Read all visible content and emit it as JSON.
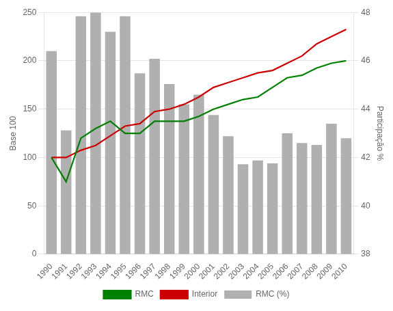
{
  "chart_data": {
    "type": "bar",
    "categories": [
      "1990",
      "1991",
      "1992",
      "1993",
      "1994",
      "1995",
      "1996",
      "1997",
      "1998",
      "1999",
      "2000",
      "2001",
      "2002",
      "2003",
      "2004",
      "2005",
      "2006",
      "2007",
      "2008",
      "2009",
      "2010"
    ],
    "series": [
      {
        "name": "RMC (%)",
        "type": "bar",
        "color": "#b0b0b0",
        "axis": "y",
        "values": [
          210,
          128,
          246,
          250,
          230,
          246,
          187,
          202,
          176,
          155,
          165,
          144,
          122,
          93,
          97,
          94,
          125,
          115,
          113,
          135,
          120
        ]
      },
      {
        "name": "RMC",
        "type": "line",
        "color": "#008000",
        "axis": "y2",
        "values": [
          42.0,
          41.0,
          42.8,
          43.2,
          43.5,
          43.0,
          43.0,
          43.5,
          43.5,
          43.5,
          43.7,
          44.0,
          44.2,
          44.4,
          44.5,
          44.9,
          45.3,
          45.4,
          45.7,
          45.9,
          46.0
        ]
      },
      {
        "name": "Interior",
        "type": "line",
        "color": "#cc0000",
        "axis": "y2",
        "values": [
          42.0,
          42.0,
          42.3,
          42.5,
          42.9,
          43.3,
          43.4,
          43.9,
          44.0,
          44.2,
          44.5,
          44.9,
          45.1,
          45.3,
          45.5,
          45.6,
          45.9,
          46.2,
          46.7,
          47.0,
          47.3
        ]
      }
    ],
    "ylabel": "Base 100",
    "y2label": "Participação %",
    "ylim": [
      0,
      250
    ],
    "yticks": [
      0,
      50,
      100,
      150,
      200,
      250
    ],
    "y2lim": [
      38,
      48
    ],
    "y2ticks": [
      38,
      40,
      42,
      44,
      46,
      48
    ],
    "grid": true,
    "legend": "bottom"
  }
}
